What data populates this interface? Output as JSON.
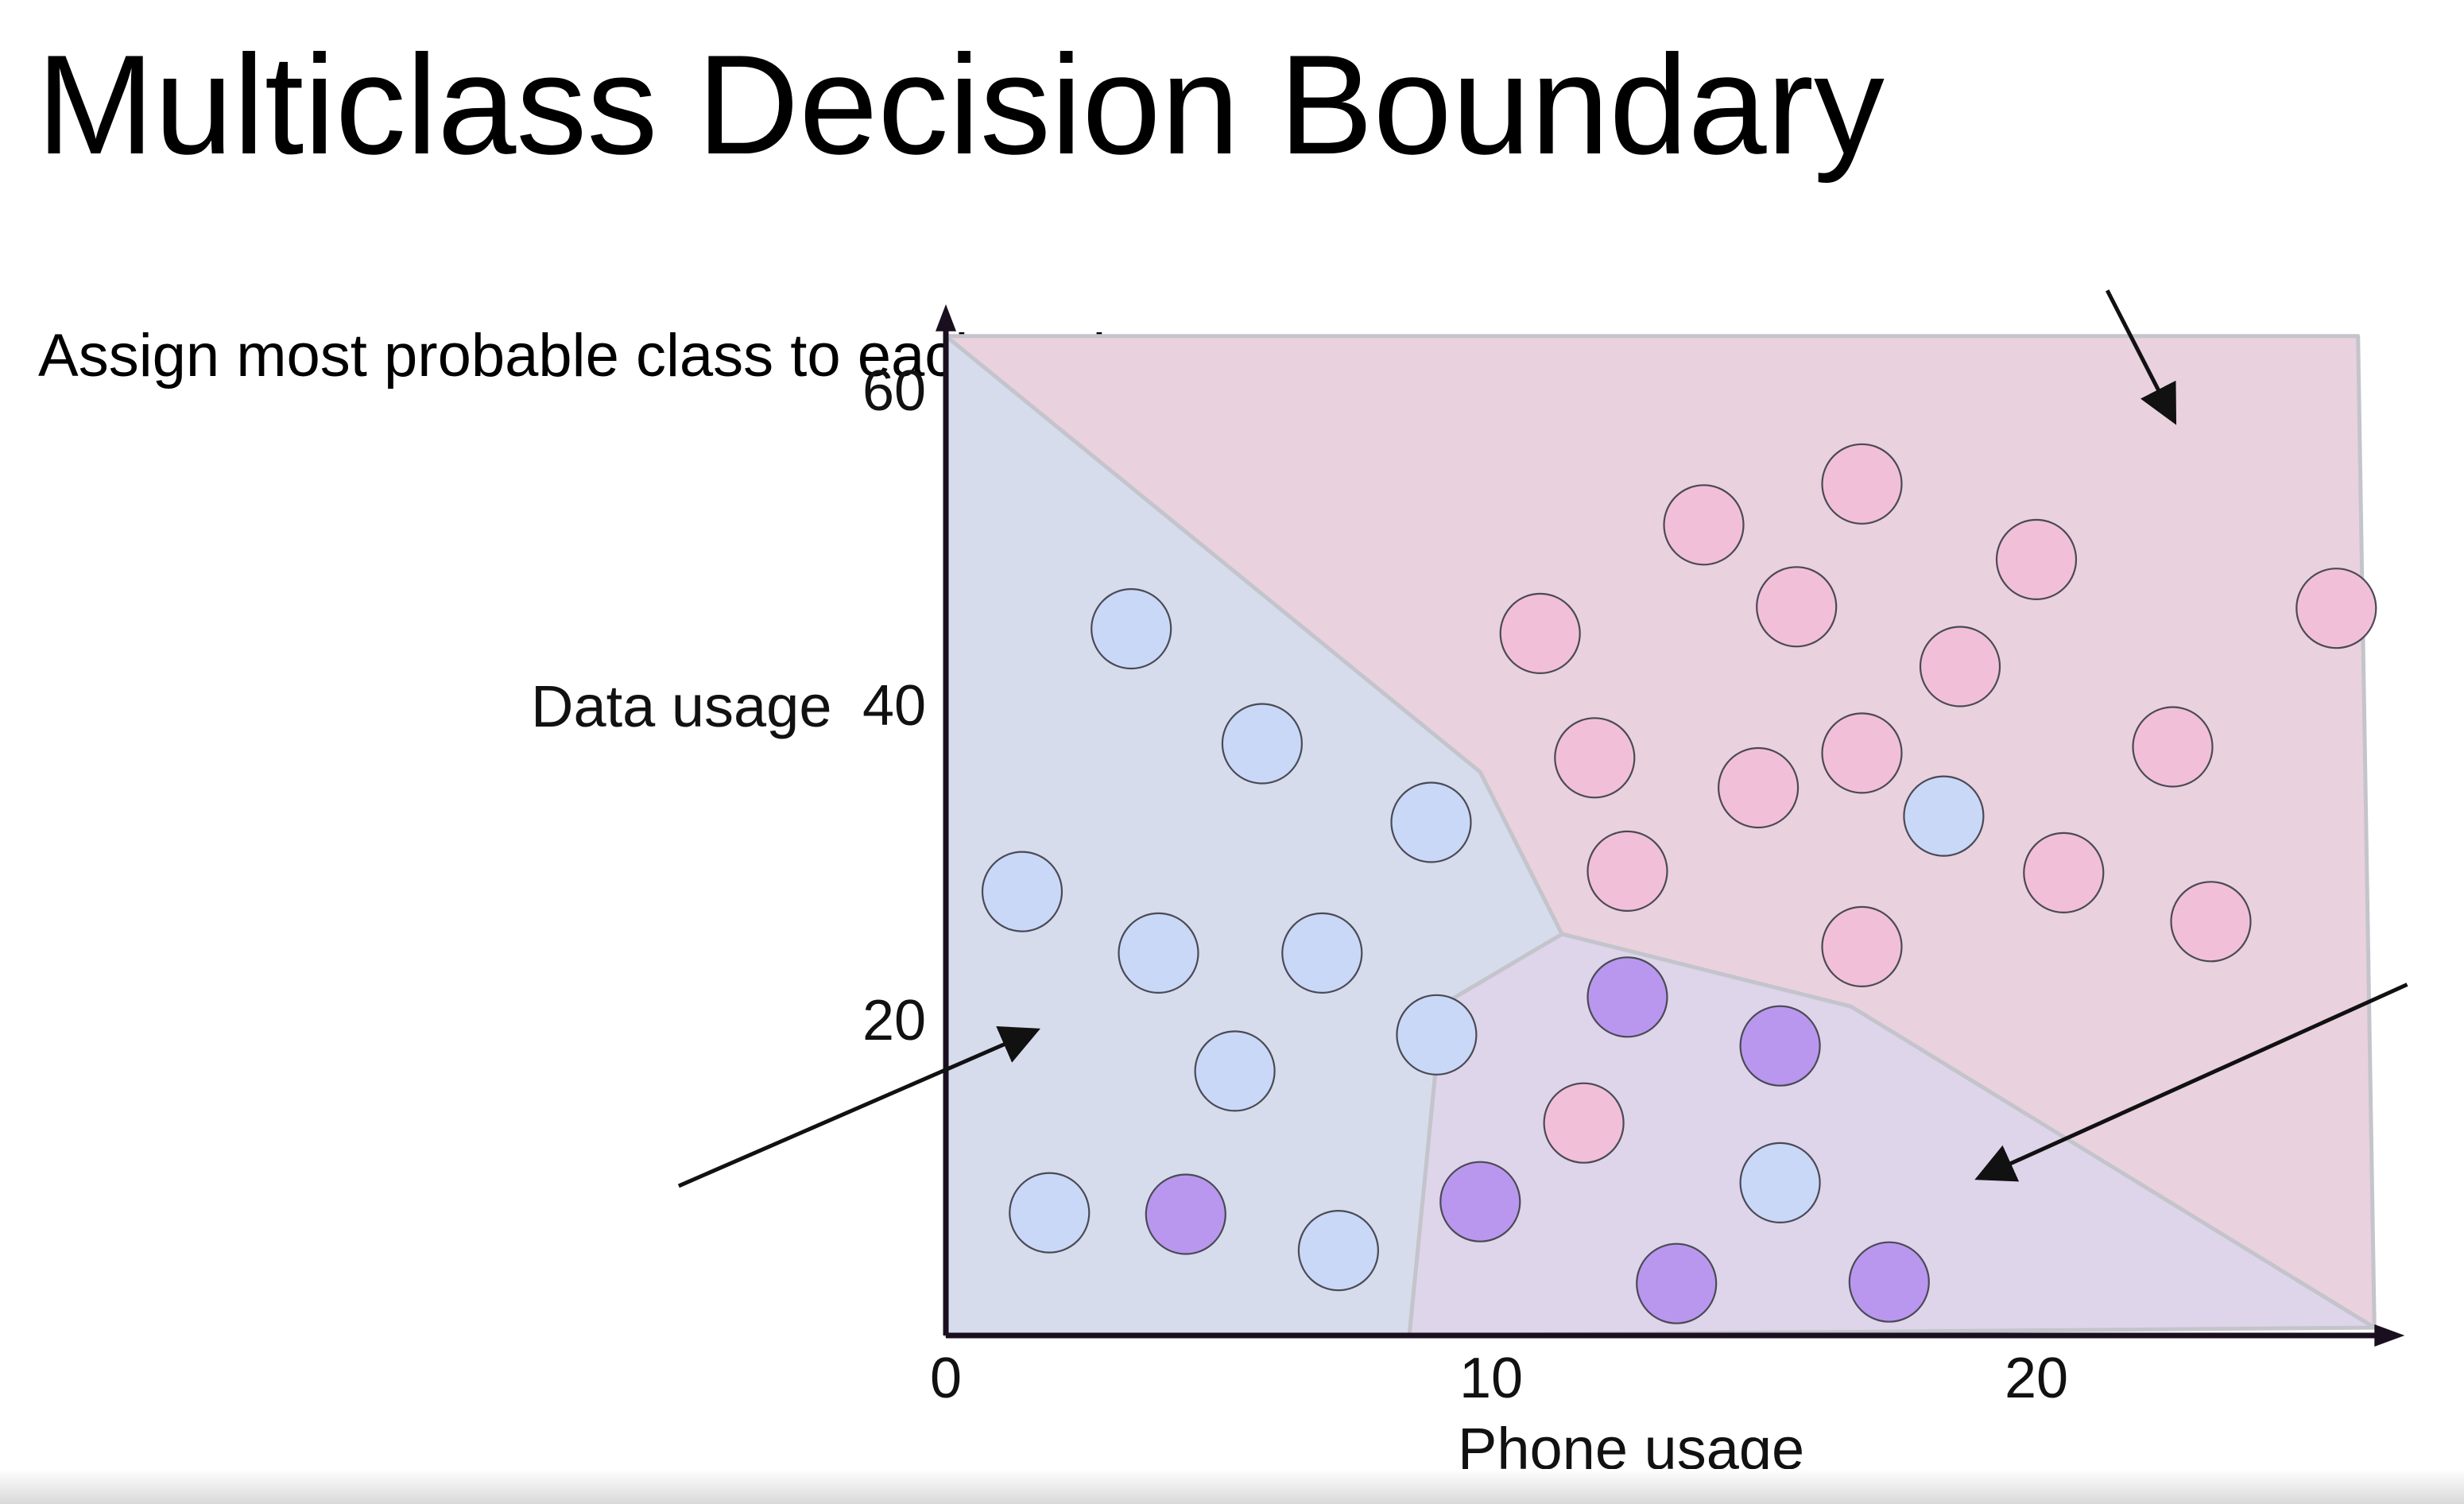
{
  "slide": {
    "title": "Multiclass Decision Boundary",
    "subtitle": "Assign most probable class to each region"
  },
  "chart_data": {
    "type": "scatter",
    "xlabel": "Phone usage",
    "ylabel": "Data usage",
    "x_ticks": [
      "0",
      "10",
      "20"
    ],
    "y_ticks": [
      "20",
      "40",
      "60"
    ],
    "x_tick_values": [
      0,
      10,
      20
    ],
    "y_tick_values": [
      20,
      40,
      60
    ],
    "xlim": [
      0,
      26.2
    ],
    "ylim": [
      0,
      64
    ],
    "colors": {
      "blue_class": "#c9d8f7",
      "pink_class": "#f2bfd9",
      "purple_class": "#b997ee",
      "blue_region": "#d6dcec",
      "pink_region": "#e9d1de",
      "purple_region": "#ded5ea",
      "axis": "#1a0f1f"
    },
    "regions": [
      {
        "class": "blue_class",
        "polygon": [
          [
            0,
            63.5
          ],
          [
            9.8,
            35.8
          ],
          [
            11.3,
            25.5
          ],
          [
            9.1,
            21
          ],
          [
            8.5,
            0
          ],
          [
            0,
            0
          ]
        ]
      },
      {
        "class": "pink_class",
        "polygon": [
          [
            0,
            63.5
          ],
          [
            25.9,
            63.5
          ],
          [
            26.2,
            0.5
          ],
          [
            16.6,
            20.9
          ],
          [
            11.3,
            25.5
          ],
          [
            9.8,
            35.8
          ]
        ]
      },
      {
        "class": "purple_class",
        "polygon": [
          [
            11.3,
            25.5
          ],
          [
            16.6,
            20.9
          ],
          [
            26.2,
            0.5
          ],
          [
            8.5,
            0
          ],
          [
            9.1,
            21
          ]
        ]
      }
    ],
    "series": [
      {
        "class": "blue_class",
        "points": [
          [
            3.4,
            44.9
          ],
          [
            5.8,
            37.6
          ],
          [
            8.9,
            32.6
          ],
          [
            1.4,
            28.2
          ],
          [
            3.9,
            24.3
          ],
          [
            6.9,
            24.3
          ],
          [
            9,
            19.1
          ],
          [
            5.3,
            16.8
          ],
          [
            1.9,
            7.8
          ],
          [
            7.2,
            5.4
          ],
          [
            18.3,
            33
          ]
        ]
      },
      {
        "class": "pink_class",
        "points": [
          [
            10.9,
            44.6
          ],
          [
            13.9,
            51.5
          ],
          [
            16.8,
            54.1
          ],
          [
            15.6,
            46.3
          ],
          [
            20,
            49.3
          ],
          [
            18.6,
            42.5
          ],
          [
            25.5,
            46.2
          ],
          [
            11.9,
            36.7
          ],
          [
            14.9,
            34.8
          ],
          [
            16.8,
            37
          ],
          [
            22.5,
            37.4
          ],
          [
            12.5,
            29.5
          ],
          [
            20.5,
            29.4
          ],
          [
            23.2,
            26.3
          ],
          [
            16.8,
            24.7
          ],
          [
            11.7,
            13.5
          ]
        ]
      },
      {
        "class": "purple_class",
        "points": [
          [
            12.5,
            21.5
          ],
          [
            15.3,
            18.4
          ],
          [
            4.4,
            7.7
          ],
          [
            9.8,
            8.5
          ],
          [
            13.4,
            3.3
          ],
          [
            17.3,
            3.4
          ]
        ]
      },
      {
        "class": "blue_class",
        "points": [
          [
            15.3,
            9.7
          ]
        ]
      }
    ],
    "annotations": [
      {
        "type": "arrow",
        "from": [
          -4.9,
          9.5
        ],
        "to": [
          1.6,
          19.3
        ],
        "points_to": "blue_class"
      },
      {
        "type": "arrow",
        "from": [
          21.3,
          66.4
        ],
        "to": [
          22.5,
          58.3
        ],
        "points_to": "pink_class"
      },
      {
        "type": "arrow",
        "from": [
          26.8,
          22.3
        ],
        "to": [
          19,
          10.1
        ],
        "points_to": "purple_class"
      }
    ]
  }
}
